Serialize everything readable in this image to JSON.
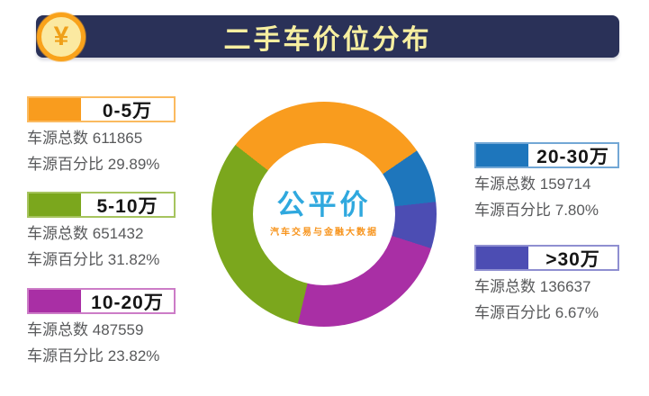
{
  "header": {
    "title": "二手车价位分布",
    "bg_color": "#2A3158",
    "title_color": "#F7EFA0",
    "coin_icon_symbol": "¥"
  },
  "center_logo": {
    "name": "公平价",
    "tagline": "汽车交易与金融大数据",
    "name_color": "#2FA8DE",
    "tagline_color": "#F7941D"
  },
  "chart_data": {
    "type": "pie",
    "subtype": "donut",
    "title": "二手车价位分布",
    "count_label": "车源总数",
    "percent_label": "车源百分比",
    "start_angle_deg": 308,
    "draw_order": [
      0,
      3,
      4,
      2,
      1
    ],
    "inner_radius_ratio": 0.63,
    "legend_position": "left-and-right",
    "series": [
      {
        "label": "0-5万",
        "count": 611865,
        "percent_value": 29.89,
        "percent_text": "29.89%",
        "color": "#F99C1E",
        "border_color": "#FBBA5F"
      },
      {
        "label": "5-10万",
        "count": 651432,
        "percent_value": 31.82,
        "percent_text": "31.82%",
        "color": "#7BA71D",
        "border_color": "#A6C45E"
      },
      {
        "label": "10-20万",
        "count": 487559,
        "percent_value": 23.82,
        "percent_text": "23.82%",
        "color": "#A92FA5",
        "border_color": "#CC7CC7"
      },
      {
        "label": "20-30万",
        "count": 159714,
        "percent_value": 7.8,
        "percent_text": "7.80%",
        "color": "#1E76BC",
        "border_color": "#72A7D5"
      },
      {
        "label": ">30万",
        "count": 136637,
        "percent_value": 6.67,
        "percent_text": "6.67%",
        "color": "#4C4DB3",
        "border_color": "#8F8FD1"
      }
    ]
  }
}
